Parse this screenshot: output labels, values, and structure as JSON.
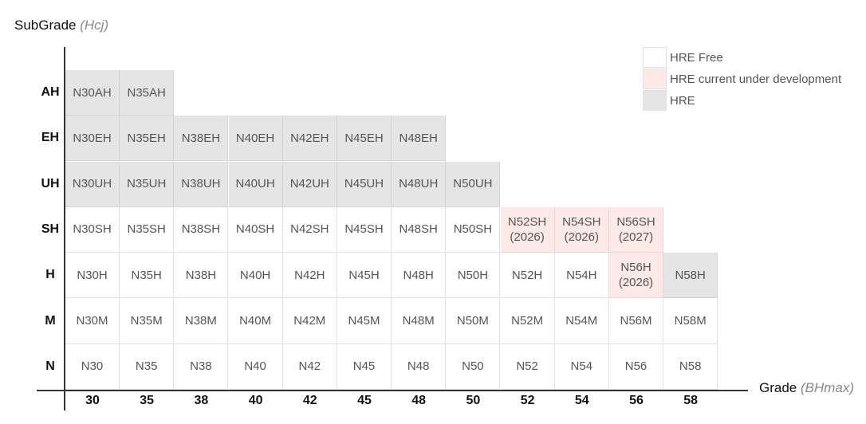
{
  "y_axis": {
    "title": "SubGrade",
    "unit": "(Hcj)"
  },
  "x_axis": {
    "title": "Grade",
    "unit": "(BHmax)"
  },
  "columns": [
    "30",
    "35",
    "38",
    "40",
    "42",
    "45",
    "48",
    "50",
    "52",
    "54",
    "56",
    "58"
  ],
  "rows": [
    {
      "label": "AH",
      "cells": [
        {
          "l1": "N30AH",
          "s": "hre"
        },
        {
          "l1": "N35AH",
          "s": "hre"
        }
      ]
    },
    {
      "label": "EH",
      "cells": [
        {
          "l1": "N30EH",
          "s": "hre"
        },
        {
          "l1": "N35EH",
          "s": "hre"
        },
        {
          "l1": "N38EH",
          "s": "hre"
        },
        {
          "l1": "N40EH",
          "s": "hre"
        },
        {
          "l1": "N42EH",
          "s": "hre"
        },
        {
          "l1": "N45EH",
          "s": "hre"
        },
        {
          "l1": "N48EH",
          "s": "hre"
        }
      ]
    },
    {
      "label": "UH",
      "cells": [
        {
          "l1": "N30UH",
          "s": "hre"
        },
        {
          "l1": "N35UH",
          "s": "hre"
        },
        {
          "l1": "N38UH",
          "s": "hre"
        },
        {
          "l1": "N40UH",
          "s": "hre"
        },
        {
          "l1": "N42UH",
          "s": "hre"
        },
        {
          "l1": "N45UH",
          "s": "hre"
        },
        {
          "l1": "N48UH",
          "s": "hre"
        },
        {
          "l1": "N50UH",
          "s": "hre"
        }
      ]
    },
    {
      "label": "SH",
      "cells": [
        {
          "l1": "N30SH",
          "s": "free"
        },
        {
          "l1": "N35SH",
          "s": "free"
        },
        {
          "l1": "N38SH",
          "s": "free"
        },
        {
          "l1": "N40SH",
          "s": "free"
        },
        {
          "l1": "N42SH",
          "s": "free"
        },
        {
          "l1": "N45SH",
          "s": "free"
        },
        {
          "l1": "N48SH",
          "s": "free"
        },
        {
          "l1": "N50SH",
          "s": "free"
        },
        {
          "l1": "N52SH",
          "l2": "(2026)",
          "s": "dev"
        },
        {
          "l1": "N54SH",
          "l2": "(2026)",
          "s": "dev"
        },
        {
          "l1": "N56SH",
          "l2": "(2027)",
          "s": "dev"
        }
      ]
    },
    {
      "label": "H",
      "cells": [
        {
          "l1": "N30H",
          "s": "free"
        },
        {
          "l1": "N35H",
          "s": "free"
        },
        {
          "l1": "N38H",
          "s": "free"
        },
        {
          "l1": "N40H",
          "s": "free"
        },
        {
          "l1": "N42H",
          "s": "free"
        },
        {
          "l1": "N45H",
          "s": "free"
        },
        {
          "l1": "N48H",
          "s": "free"
        },
        {
          "l1": "N50H",
          "s": "free"
        },
        {
          "l1": "N52H",
          "s": "free"
        },
        {
          "l1": "N54H",
          "s": "free"
        },
        {
          "l1": "N56H",
          "l2": "(2026)",
          "s": "dev"
        },
        {
          "l1": "N58H",
          "s": "hre"
        }
      ]
    },
    {
      "label": "M",
      "cells": [
        {
          "l1": "N30M",
          "s": "free"
        },
        {
          "l1": "N35M",
          "s": "free"
        },
        {
          "l1": "N38M",
          "s": "free"
        },
        {
          "l1": "N40M",
          "s": "free"
        },
        {
          "l1": "N42M",
          "s": "free"
        },
        {
          "l1": "N45M",
          "s": "free"
        },
        {
          "l1": "N48M",
          "s": "free"
        },
        {
          "l1": "N50M",
          "s": "free"
        },
        {
          "l1": "N52M",
          "s": "free"
        },
        {
          "l1": "N54M",
          "s": "free"
        },
        {
          "l1": "N56M",
          "s": "free"
        },
        {
          "l1": "N58M",
          "s": "free"
        }
      ]
    },
    {
      "label": "N",
      "cells": [
        {
          "l1": "N30",
          "s": "free"
        },
        {
          "l1": "N35",
          "s": "free"
        },
        {
          "l1": "N38",
          "s": "free"
        },
        {
          "l1": "N40",
          "s": "free"
        },
        {
          "l1": "N42",
          "s": "free"
        },
        {
          "l1": "N45",
          "s": "free"
        },
        {
          "l1": "N48",
          "s": "free"
        },
        {
          "l1": "N50",
          "s": "free"
        },
        {
          "l1": "N52",
          "s": "free"
        },
        {
          "l1": "N54",
          "s": "free"
        },
        {
          "l1": "N56",
          "s": "free"
        },
        {
          "l1": "N58",
          "s": "free"
        }
      ]
    }
  ],
  "legend": [
    {
      "label": "HRE Free",
      "s": "free"
    },
    {
      "label": "HRE current under development",
      "s": "dev"
    },
    {
      "label": "HRE",
      "s": "hre"
    }
  ],
  "colors": {
    "hre": "#e5e5e5",
    "dev": "#fde9e7",
    "free": "#ffffff",
    "axis": "#333333"
  }
}
